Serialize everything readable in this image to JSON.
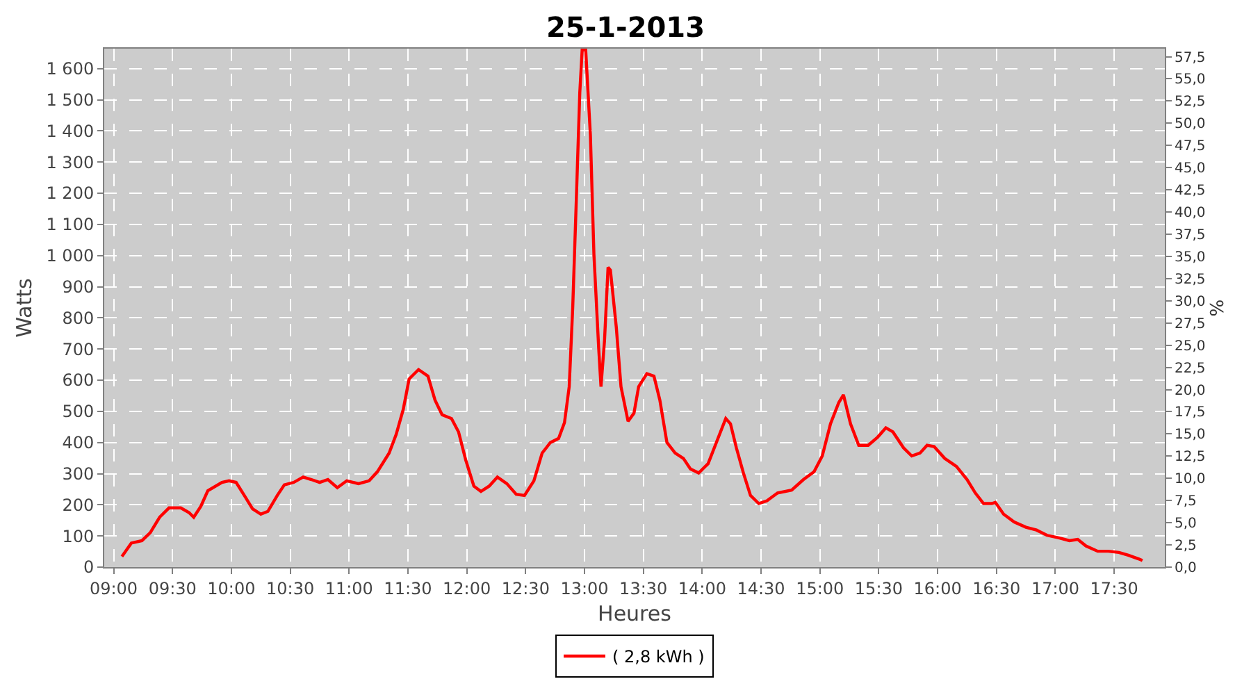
{
  "chart_data": {
    "type": "line",
    "title": "25-1-2013",
    "xlabel": "Heures",
    "ylabel": "Watts",
    "y2label": "%",
    "series": [
      {
        "name": "( 2,8 kWh )",
        "color": "#ff0000",
        "x": [
          9.07,
          9.15,
          9.24,
          9.31,
          9.39,
          9.47,
          9.57,
          9.64,
          9.68,
          9.74,
          9.8,
          9.92,
          9.98,
          10.04,
          10.11,
          10.18,
          10.25,
          10.31,
          10.39,
          10.45,
          10.53,
          10.61,
          10.68,
          10.75,
          10.82,
          10.9,
          10.98,
          11.08,
          11.17,
          11.24,
          11.34,
          11.4,
          11.46,
          11.51,
          11.59,
          11.67,
          11.73,
          11.79,
          11.87,
          11.93,
          11.99,
          12.06,
          12.12,
          12.19,
          12.26,
          12.34,
          12.42,
          12.49,
          12.57,
          12.64,
          12.71,
          12.78,
          12.83,
          12.87,
          12.9,
          12.93,
          12.96,
          12.98,
          13.01,
          13.05,
          13.08,
          13.12,
          13.14,
          13.17,
          13.2,
          13.22,
          13.27,
          13.31,
          13.37,
          13.42,
          13.46,
          13.53,
          13.59,
          13.64,
          13.7,
          13.77,
          13.84,
          13.9,
          13.97,
          14.05,
          14.12,
          14.2,
          14.24,
          14.29,
          14.35,
          14.41,
          14.48,
          14.55,
          14.64,
          14.76,
          14.86,
          14.95,
          15.02,
          15.09,
          15.16,
          15.2,
          15.26,
          15.33,
          15.41,
          15.49,
          15.56,
          15.62,
          15.71,
          15.78,
          15.85,
          15.91,
          15.97,
          16.06,
          16.16,
          16.25,
          16.32,
          16.39,
          16.46,
          16.49,
          16.56,
          16.65,
          16.75,
          16.84,
          16.93,
          17.03,
          17.12,
          17.19,
          17.26,
          17.36,
          17.45,
          17.54,
          17.62,
          17.71,
          17.74
        ],
        "values": [
          34,
          77,
          85,
          110,
          160,
          190,
          190,
          175,
          160,
          195,
          245,
          272,
          277,
          272,
          230,
          187,
          170,
          179,
          230,
          264,
          272,
          289,
          281,
          272,
          281,
          255,
          277,
          268,
          277,
          306,
          366,
          426,
          506,
          604,
          634,
          613,
          536,
          489,
          477,
          434,
          345,
          260,
          243,
          260,
          289,
          268,
          234,
          230,
          277,
          366,
          400,
          413,
          464,
          579,
          834,
          1174,
          1523,
          1660,
          1660,
          1387,
          1004,
          706,
          579,
          728,
          962,
          953,
          770,
          579,
          468,
          494,
          579,
          621,
          613,
          536,
          400,
          366,
          349,
          315,
          302,
          332,
          400,
          477,
          460,
          383,
          302,
          230,
          204,
          213,
          238,
          247,
          281,
          306,
          357,
          460,
          528,
          553,
          460,
          391,
          391,
          417,
          447,
          434,
          383,
          357,
          366,
          391,
          387,
          349,
          323,
          281,
          238,
          204,
          204,
          208,
          170,
          145,
          128,
          119,
          102,
          94,
          85,
          89,
          68,
          51,
          51,
          47,
          38,
          26,
          21
        ]
      }
    ],
    "xlim": [
      8.92,
      17.93
    ],
    "xticks": [
      {
        "value": 9,
        "label": "09:00"
      },
      {
        "value": 9.5,
        "label": "09:30"
      },
      {
        "value": 10,
        "label": "10:00"
      },
      {
        "value": 10.5,
        "label": "10:30"
      },
      {
        "value": 11,
        "label": "11:00"
      },
      {
        "value": 11.5,
        "label": "11:30"
      },
      {
        "value": 12,
        "label": "12:00"
      },
      {
        "value": 12.5,
        "label": "12:30"
      },
      {
        "value": 13,
        "label": "13:00"
      },
      {
        "value": 13.5,
        "label": "13:30"
      },
      {
        "value": 14,
        "label": "14:00"
      },
      {
        "value": 14.5,
        "label": "14:30"
      },
      {
        "value": 15,
        "label": "15:00"
      },
      {
        "value": 15.5,
        "label": "15:30"
      },
      {
        "value": 16,
        "label": "16:00"
      },
      {
        "value": 16.5,
        "label": "16:30"
      },
      {
        "value": 17,
        "label": "17:00"
      },
      {
        "value": 17.5,
        "label": "17:30"
      }
    ],
    "ylim": [
      0,
      1664
    ],
    "yticks": [
      0,
      100,
      200,
      300,
      400,
      500,
      600,
      700,
      800,
      900,
      {
        "value": 1000,
        "label": "1 000"
      },
      {
        "value": 1100,
        "label": "1 100"
      },
      {
        "value": 1200,
        "label": "1 200"
      },
      {
        "value": 1300,
        "label": "1 300"
      },
      {
        "value": 1400,
        "label": "1 400"
      },
      {
        "value": 1500,
        "label": "1 500"
      },
      {
        "value": 1600,
        "label": "1 600"
      }
    ],
    "y2lim": [
      0,
      58.4
    ],
    "y2ticks": [
      {
        "value": 0,
        "label": "0,0"
      },
      {
        "value": 2.5,
        "label": "2,5"
      },
      {
        "value": 5,
        "label": "5,0"
      },
      {
        "value": 7.5,
        "label": "7,5"
      },
      {
        "value": 10,
        "label": "10,0"
      },
      {
        "value": 12.5,
        "label": "12,5"
      },
      {
        "value": 15,
        "label": "15,0"
      },
      {
        "value": 17.5,
        "label": "17,5"
      },
      {
        "value": 20,
        "label": "20,0"
      },
      {
        "value": 22.5,
        "label": "22,5"
      },
      {
        "value": 25,
        "label": "25,0"
      },
      {
        "value": 27.5,
        "label": "27,5"
      },
      {
        "value": 30,
        "label": "30,0"
      },
      {
        "value": 32.5,
        "label": "32,5"
      },
      {
        "value": 35,
        "label": "35,0"
      },
      {
        "value": 37.5,
        "label": "37,5"
      },
      {
        "value": 40,
        "label": "40,0"
      },
      {
        "value": 42.5,
        "label": "42,5"
      },
      {
        "value": 45,
        "label": "45,0"
      },
      {
        "value": 47.5,
        "label": "47,5"
      },
      {
        "value": 50,
        "label": "50,0"
      },
      {
        "value": 52.5,
        "label": "52,5"
      },
      {
        "value": 55,
        "label": "55,0"
      },
      {
        "value": 57.5,
        "label": "57,5"
      }
    ],
    "grid": true,
    "legend": "bottom",
    "marker": "none",
    "line_style": "solid"
  }
}
